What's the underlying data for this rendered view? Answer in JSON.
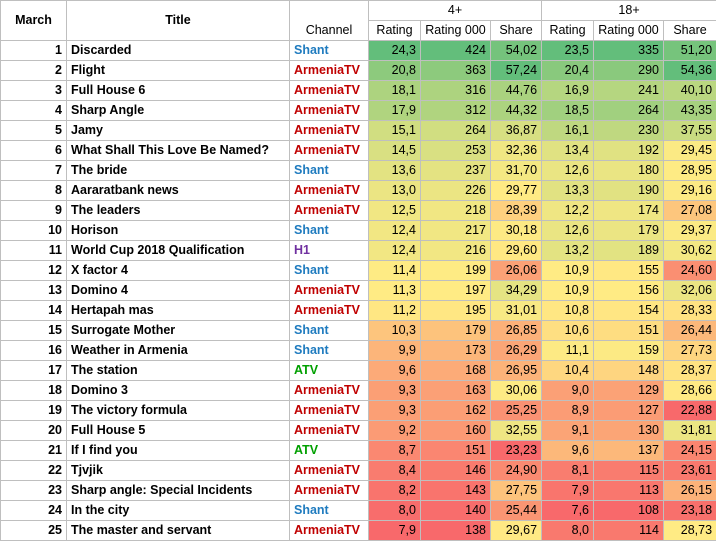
{
  "headers": {
    "march": "March",
    "title": "Title",
    "channel": "Channel",
    "group_4": "4+",
    "group_18": "18+",
    "rating": "Rating",
    "rating000": "Rating 000",
    "share": "Share"
  },
  "channel_colors": {
    "Shant": "#1f7bbf",
    "ArmeniaTV": "#c00000",
    "H1": "#7030a0",
    "ATV": "#00a000"
  },
  "rows": [
    {
      "n": "1",
      "title": "Discarded",
      "channel": "Shant",
      "r4": "24,3",
      "k4": "424",
      "s4": "54,02",
      "r18": "23,5",
      "k18": "335",
      "s18": "51,20"
    },
    {
      "n": "2",
      "title": "Flight",
      "channel": "ArmeniaTV",
      "r4": "20,8",
      "k4": "363",
      "s4": "57,24",
      "r18": "20,4",
      "k18": "290",
      "s18": "54,36"
    },
    {
      "n": "3",
      "title": "Full House  6",
      "channel": "ArmeniaTV",
      "r4": "18,1",
      "k4": "316",
      "s4": "44,76",
      "r18": "16,9",
      "k18": "241",
      "s18": "40,10"
    },
    {
      "n": "4",
      "title": "Sharp Angle",
      "channel": "ArmeniaTV",
      "r4": "17,9",
      "k4": "312",
      "s4": "44,32",
      "r18": "18,5",
      "k18": "264",
      "s18": "43,35"
    },
    {
      "n": "5",
      "title": "Jamy",
      "channel": "ArmeniaTV",
      "r4": "15,1",
      "k4": "264",
      "s4": "36,87",
      "r18": "16,1",
      "k18": "230",
      "s18": "37,55"
    },
    {
      "n": "6",
      "title": "What Shall This Love Be Named?",
      "channel": "ArmeniaTV",
      "r4": "14,5",
      "k4": "253",
      "s4": "32,36",
      "r18": "13,4",
      "k18": "192",
      "s18": "29,45"
    },
    {
      "n": "7",
      "title": "The bride",
      "channel": "Shant",
      "r4": "13,6",
      "k4": "237",
      "s4": "31,70",
      "r18": "12,6",
      "k18": "180",
      "s18": "28,95"
    },
    {
      "n": "8",
      "title": "Aararatbank news",
      "channel": "ArmeniaTV",
      "r4": "13,0",
      "k4": "226",
      "s4": "29,77",
      "r18": "13,3",
      "k18": "190",
      "s18": "29,16"
    },
    {
      "n": "9",
      "title": "The leaders",
      "channel": "ArmeniaTV",
      "r4": "12,5",
      "k4": "218",
      "s4": "28,39",
      "r18": "12,2",
      "k18": "174",
      "s18": "27,08"
    },
    {
      "n": "10",
      "title": "Horison",
      "channel": "Shant",
      "r4": "12,4",
      "k4": "217",
      "s4": "30,18",
      "r18": "12,6",
      "k18": "179",
      "s18": "29,37"
    },
    {
      "n": "11",
      "title": "World Cup 2018 Qualification",
      "channel": "H1",
      "r4": "12,4",
      "k4": "216",
      "s4": "29,60",
      "r18": "13,2",
      "k18": "189",
      "s18": "30,62"
    },
    {
      "n": "12",
      "title": "X factor 4",
      "channel": "Shant",
      "r4": "11,4",
      "k4": "199",
      "s4": "26,06",
      "r18": "10,9",
      "k18": "155",
      "s18": "24,60"
    },
    {
      "n": "13",
      "title": "Domino 4",
      "channel": "ArmeniaTV",
      "r4": "11,3",
      "k4": "197",
      "s4": "34,29",
      "r18": "10,9",
      "k18": "156",
      "s18": "32,06"
    },
    {
      "n": "14",
      "title": "Hertapah mas",
      "channel": "ArmeniaTV",
      "r4": "11,2",
      "k4": "195",
      "s4": "31,01",
      "r18": "10,8",
      "k18": "154",
      "s18": "28,33"
    },
    {
      "n": "15",
      "title": "Surrogate Mother",
      "channel": "Shant",
      "r4": "10,3",
      "k4": "179",
      "s4": "26,85",
      "r18": "10,6",
      "k18": "151",
      "s18": "26,44"
    },
    {
      "n": "16",
      "title": "Weather in Armenia",
      "channel": "Shant",
      "r4": "9,9",
      "k4": "173",
      "s4": "26,29",
      "r18": "11,1",
      "k18": "159",
      "s18": "27,73"
    },
    {
      "n": "17",
      "title": "The station",
      "channel": "ATV",
      "r4": "9,6",
      "k4": "168",
      "s4": "26,95",
      "r18": "10,4",
      "k18": "148",
      "s18": "28,37"
    },
    {
      "n": "18",
      "title": "Domino 3",
      "channel": "ArmeniaTV",
      "r4": "9,3",
      "k4": "163",
      "s4": "30,06",
      "r18": "9,0",
      "k18": "129",
      "s18": "28,66"
    },
    {
      "n": "19",
      "title": "The victory formula",
      "channel": "ArmeniaTV",
      "r4": "9,3",
      "k4": "162",
      "s4": "25,25",
      "r18": "8,9",
      "k18": "127",
      "s18": "22,88"
    },
    {
      "n": "20",
      "title": "Full House 5",
      "channel": "ArmeniaTV",
      "r4": "9,2",
      "k4": "160",
      "s4": "32,55",
      "r18": "9,1",
      "k18": "130",
      "s18": "31,81"
    },
    {
      "n": "21",
      "title": "If I find you",
      "channel": "ATV",
      "r4": "8,7",
      "k4": "151",
      "s4": "23,23",
      "r18": "9,6",
      "k18": "137",
      "s18": "24,15"
    },
    {
      "n": "22",
      "title": "Tjvjik",
      "channel": "ArmeniaTV",
      "r4": "8,4",
      "k4": "146",
      "s4": "24,90",
      "r18": "8,1",
      "k18": "115",
      "s18": "23,61"
    },
    {
      "n": "23",
      "title": "Sharp angle: Special Incidents",
      "channel": "ArmeniaTV",
      "r4": "8,2",
      "k4": "143",
      "s4": "27,75",
      "r18": "7,9",
      "k18": "113",
      "s18": "26,15"
    },
    {
      "n": "24",
      "title": "In the city",
      "channel": "Shant",
      "r4": "8,0",
      "k4": "140",
      "s4": "25,44",
      "r18": "7,6",
      "k18": "108",
      "s18": "23,18"
    },
    {
      "n": "25",
      "title": "The master and servant",
      "channel": "ArmeniaTV",
      "r4": "7,9",
      "k4": "138",
      "s4": "29,67",
      "r18": "8,0",
      "k18": "114",
      "s18": "28,73"
    }
  ]
}
